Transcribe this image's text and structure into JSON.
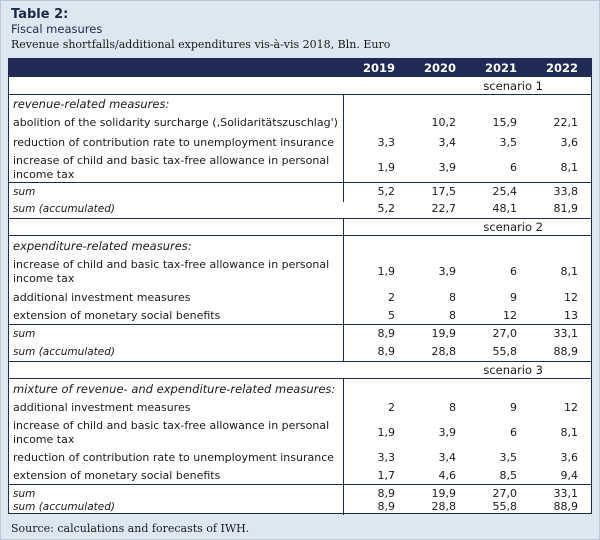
{
  "title": "Table 2:",
  "subtitle": "Fiscal measures",
  "description": "Revenue shortfalls/additional expenditures vis-à-vis 2018, Bln. Euro",
  "years": [
    "2019",
    "2020",
    "2021",
    "2022"
  ],
  "s1": {
    "label": "scenario 1",
    "section": "revenue-related measures:",
    "rows": [
      {
        "label": "abolition of the solidarity surcharge (‚Solidaritätszuschlag')",
        "v": [
          "",
          "10,2",
          "15,9",
          "22,1"
        ]
      },
      {
        "label": "reduction of contribution rate to unemployment insurance",
        "v": [
          "3,3",
          "3,4",
          "3,5",
          "3,6"
        ]
      },
      {
        "label": "increase of child and basic tax-free allowance in personal income tax",
        "v": [
          "1,9",
          "3,9",
          "6",
          "8,1"
        ]
      }
    ],
    "sum": {
      "label": "sum",
      "v": [
        "5,2",
        "17,5",
        "25,4",
        "33,8"
      ]
    },
    "acc": {
      "label": "sum (accumulated)",
      "v": [
        "5,2",
        "22,7",
        "48,1",
        "81,9"
      ]
    }
  },
  "s2": {
    "label": "scenario 2",
    "section": "expenditure-related measures:",
    "rows": [
      {
        "label": "increase of child and basic tax-free allowance in personal income tax",
        "v": [
          "1,9",
          "3,9",
          "6",
          "8,1"
        ]
      },
      {
        "label": "additional investment measures",
        "v": [
          "2",
          "8",
          "9",
          "12"
        ]
      },
      {
        "label": "extension of monetary social benefits",
        "v": [
          "5",
          "8",
          "12",
          "13"
        ]
      }
    ],
    "sum": {
      "label": "sum",
      "v": [
        "8,9",
        "19,9",
        "27,0",
        "33,1"
      ]
    },
    "acc": {
      "label": "sum (accumulated)",
      "v": [
        "8,9",
        "28,8",
        "55,8",
        "88,9"
      ]
    }
  },
  "s3": {
    "label": "scenario 3",
    "section": "mixture of revenue- and expenditure-related measures:",
    "rows": [
      {
        "label": "additional investment measures",
        "v": [
          "2",
          "8",
          "9",
          "12"
        ]
      },
      {
        "label": "increase of child and basic tax-free allowance in personal income tax",
        "v": [
          "1,9",
          "3,9",
          "6",
          "8,1"
        ]
      },
      {
        "label": "reduction of contribution rate to unemployment insurance",
        "v": [
          "3,3",
          "3,4",
          "3,5",
          "3,6"
        ]
      },
      {
        "label": "extension of monetary social benefits",
        "v": [
          "1,7",
          "4,6",
          "8,5",
          "9,4"
        ]
      }
    ],
    "sum": {
      "label": "sum",
      "v": [
        "8,9",
        "19,9",
        "27,0",
        "33,1"
      ]
    },
    "acc": {
      "label": "sum (accumulated)",
      "v": [
        "8,9",
        "28,8",
        "55,8",
        "88,9"
      ]
    }
  },
  "source": "Source: calculations and forecasts of IWH."
}
